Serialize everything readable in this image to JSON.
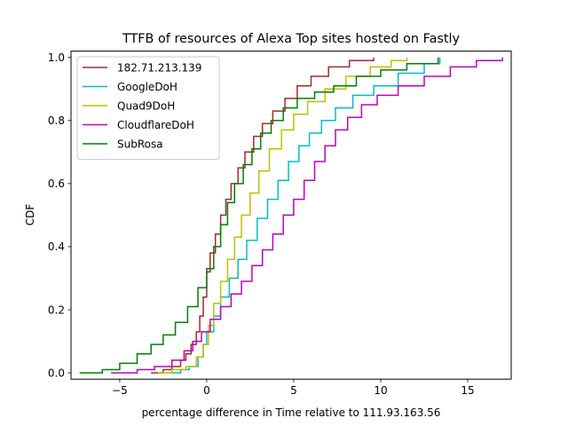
{
  "chart_data": {
    "type": "line",
    "title": "TTFB of resources of Alexa Top sites hosted on Fastly",
    "xlabel": "percentage difference in Time relative to 111.93.163.56",
    "ylabel": "CDF",
    "xlim": [
      -7.8,
      17.5
    ],
    "ylim": [
      -0.02,
      1.02
    ],
    "xticks": [
      -5,
      0,
      5,
      10,
      15
    ],
    "xtick_labels": [
      "−5",
      "0",
      "5",
      "10",
      "15"
    ],
    "yticks": [
      0.0,
      0.2,
      0.4,
      0.6,
      0.8,
      1.0
    ],
    "ytick_labels": [
      "0.0",
      "0.2",
      "0.4",
      "0.6",
      "0.8",
      "1.0"
    ],
    "grid": false,
    "legend_position": "top-left",
    "series": [
      {
        "name": "182.71.213.139",
        "color": "#a52a2a",
        "points": [
          [
            -3.2,
            0.0
          ],
          [
            -2.5,
            0.01
          ],
          [
            -2.0,
            0.02
          ],
          [
            -1.5,
            0.04
          ],
          [
            -1.2,
            0.06
          ],
          [
            -0.9,
            0.09
          ],
          [
            -0.6,
            0.13
          ],
          [
            -0.4,
            0.18
          ],
          [
            -0.2,
            0.24
          ],
          [
            0.0,
            0.32
          ],
          [
            0.2,
            0.38
          ],
          [
            0.5,
            0.44
          ],
          [
            0.8,
            0.5
          ],
          [
            1.1,
            0.55
          ],
          [
            1.4,
            0.6
          ],
          [
            1.8,
            0.65
          ],
          [
            2.2,
            0.7
          ],
          [
            2.7,
            0.75
          ],
          [
            3.2,
            0.79
          ],
          [
            3.8,
            0.83
          ],
          [
            4.5,
            0.87
          ],
          [
            5.2,
            0.91
          ],
          [
            6.0,
            0.94
          ],
          [
            7.0,
            0.97
          ],
          [
            8.2,
            0.99
          ],
          [
            9.6,
            1.0
          ]
        ]
      },
      {
        "name": "GoogleDoH",
        "color": "#00bfbf",
        "points": [
          [
            -2.0,
            0.0
          ],
          [
            -1.5,
            0.01
          ],
          [
            -1.0,
            0.02
          ],
          [
            -0.5,
            0.05
          ],
          [
            -0.2,
            0.09
          ],
          [
            0.0,
            0.13
          ],
          [
            0.4,
            0.18
          ],
          [
            0.8,
            0.24
          ],
          [
            1.3,
            0.3
          ],
          [
            1.8,
            0.36
          ],
          [
            2.3,
            0.42
          ],
          [
            2.9,
            0.49
          ],
          [
            3.5,
            0.55
          ],
          [
            4.1,
            0.61
          ],
          [
            4.7,
            0.67
          ],
          [
            5.3,
            0.72
          ],
          [
            5.9,
            0.76
          ],
          [
            6.6,
            0.8
          ],
          [
            7.4,
            0.84
          ],
          [
            8.4,
            0.88
          ],
          [
            9.6,
            0.91
          ],
          [
            11.0,
            0.95
          ],
          [
            12.5,
            0.98
          ],
          [
            13.4,
            1.0
          ]
        ]
      },
      {
        "name": "Quad9DoH",
        "color": "#bfbf00",
        "points": [
          [
            -2.8,
            0.0
          ],
          [
            -2.0,
            0.01
          ],
          [
            -1.2,
            0.02
          ],
          [
            -0.6,
            0.05
          ],
          [
            -0.2,
            0.09
          ],
          [
            0.1,
            0.15
          ],
          [
            0.4,
            0.22
          ],
          [
            0.8,
            0.29
          ],
          [
            1.2,
            0.36
          ],
          [
            1.6,
            0.43
          ],
          [
            2.0,
            0.5
          ],
          [
            2.5,
            0.57
          ],
          [
            3.0,
            0.64
          ],
          [
            3.6,
            0.71
          ],
          [
            4.3,
            0.77
          ],
          [
            5.0,
            0.82
          ],
          [
            5.8,
            0.86
          ],
          [
            6.8,
            0.9
          ],
          [
            8.0,
            0.94
          ],
          [
            9.4,
            0.97
          ],
          [
            10.6,
            0.99
          ],
          [
            11.5,
            1.0
          ]
        ]
      },
      {
        "name": "CloudflareDoH",
        "color": "#bf00bf",
        "points": [
          [
            -5.5,
            0.0
          ],
          [
            -4.0,
            0.01
          ],
          [
            -3.0,
            0.02
          ],
          [
            -2.0,
            0.04
          ],
          [
            -1.3,
            0.07
          ],
          [
            -0.8,
            0.1
          ],
          [
            -0.3,
            0.13
          ],
          [
            0.2,
            0.17
          ],
          [
            0.8,
            0.21
          ],
          [
            1.4,
            0.25
          ],
          [
            2.0,
            0.29
          ],
          [
            2.6,
            0.34
          ],
          [
            3.2,
            0.39
          ],
          [
            3.8,
            0.44
          ],
          [
            4.4,
            0.5
          ],
          [
            5.0,
            0.55
          ],
          [
            5.6,
            0.61
          ],
          [
            6.2,
            0.67
          ],
          [
            6.8,
            0.72
          ],
          [
            7.4,
            0.77
          ],
          [
            8.1,
            0.81
          ],
          [
            8.9,
            0.85
          ],
          [
            9.8,
            0.88
          ],
          [
            11.0,
            0.91
          ],
          [
            12.5,
            0.94
          ],
          [
            14.0,
            0.97
          ],
          [
            15.5,
            0.99
          ],
          [
            17.0,
            1.0
          ]
        ]
      },
      {
        "name": "SubRosa",
        "color": "#008000",
        "points": [
          [
            -7.3,
            0.0
          ],
          [
            -6.0,
            0.01
          ],
          [
            -5.0,
            0.03
          ],
          [
            -4.0,
            0.06
          ],
          [
            -3.2,
            0.09
          ],
          [
            -2.5,
            0.12
          ],
          [
            -1.8,
            0.16
          ],
          [
            -1.1,
            0.21
          ],
          [
            -0.5,
            0.27
          ],
          [
            0.0,
            0.33
          ],
          [
            0.4,
            0.4
          ],
          [
            0.8,
            0.47
          ],
          [
            1.2,
            0.54
          ],
          [
            1.6,
            0.6
          ],
          [
            2.1,
            0.66
          ],
          [
            2.6,
            0.71
          ],
          [
            3.1,
            0.76
          ],
          [
            3.7,
            0.8
          ],
          [
            4.4,
            0.84
          ],
          [
            5.2,
            0.87
          ],
          [
            6.2,
            0.89
          ],
          [
            7.3,
            0.91
          ],
          [
            8.6,
            0.94
          ],
          [
            10.0,
            0.96
          ],
          [
            11.5,
            0.98
          ],
          [
            13.3,
            1.0
          ]
        ]
      }
    ]
  }
}
